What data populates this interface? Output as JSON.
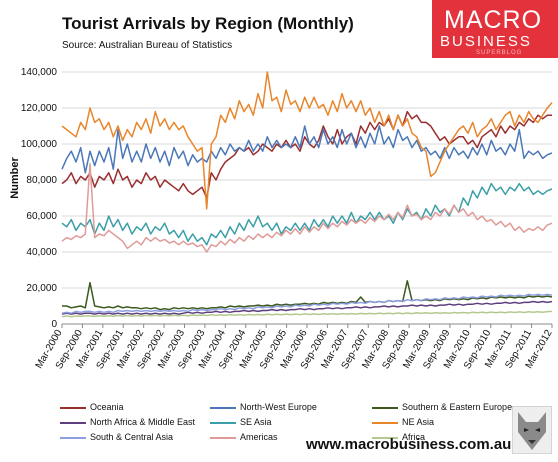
{
  "header": {
    "title": "Tourist Arrivals by Region (Monthly)",
    "source": "Source: Australian Bureau of Statistics"
  },
  "logo": {
    "line1": "MACRO",
    "line2": "BUSINESS",
    "line3": "SUPERBLOG"
  },
  "footer": {
    "url": "www.macrobusiness.com.au"
  },
  "colors": {
    "Oceania": "#9a2f30",
    "North-West Europe": "#4b78b8",
    "Southern & Eastern Europe": "#3b5a1e",
    "North Africa & Middle East": "#5e3f7d",
    "SE Asia": "#3b9fa8",
    "NE Asia": "#e8862b",
    "South & Central Asia": "#8e9ee2",
    "Americas": "#df9b98",
    "Africa": "#b4c98f"
  },
  "chart_data": {
    "type": "line",
    "ylabel": "Number",
    "ylim": [
      0,
      140000
    ],
    "yticks": [
      "0",
      "20,000",
      "40,000",
      "60,000",
      "80,000",
      "100,000",
      "120,000",
      "140,000"
    ],
    "x_tick_labels": [
      "Mar-2000",
      "Sep-2000",
      "Mar-2001",
      "Sep-2001",
      "Mar-2002",
      "Sep-2002",
      "Mar-2003",
      "Sep-2003",
      "Mar-2004",
      "Sep-2004",
      "Mar-2005",
      "Sep-2005",
      "Mar-2006",
      "Sep-2006",
      "Mar-2007",
      "Sep-2007",
      "Mar-2008",
      "Sep-2008",
      "Mar-2009",
      "Sep-2009",
      "Mar-2010",
      "Sep-2010",
      "Mar-2011",
      "Sep-2011",
      "Mar-2012"
    ],
    "grid": true,
    "legend_position": "bottom",
    "series": [
      {
        "name": "Oceania",
        "values": [
          78000,
          80000,
          84000,
          78000,
          82000,
          80000,
          84000,
          76000,
          82000,
          80000,
          84000,
          78000,
          86000,
          80000,
          82000,
          76000,
          80000,
          78000,
          84000,
          80000,
          82000,
          76000,
          80000,
          78000,
          76000,
          74000,
          78000,
          74000,
          72000,
          74000,
          76000,
          70000,
          84000,
          80000,
          86000,
          90000,
          92000,
          94000,
          98000,
          96000,
          98000,
          94000,
          96000,
          100000,
          98000,
          96000,
          100000,
          98000,
          102000,
          98000,
          100000,
          96000,
          104000,
          100000,
          98000,
          102000,
          110000,
          104000,
          100000,
          108000,
          100000,
          104000,
          106000,
          100000,
          110000,
          106000,
          112000,
          108000,
          112000,
          110000,
          114000,
          108000,
          116000,
          110000,
          118000,
          114000,
          116000,
          112000,
          112000,
          110000,
          106000,
          102000,
          104000,
          100000,
          102000,
          104000,
          104000,
          100000,
          102000,
          98000,
          104000,
          106000,
          108000,
          104000,
          110000,
          106000,
          110000,
          108000,
          112000,
          110000,
          114000,
          112000,
          116000,
          114000,
          116000,
          116000
        ]
      },
      {
        "name": "North-West Europe",
        "values": [
          86000,
          92000,
          96000,
          90000,
          98000,
          84000,
          96000,
          88000,
          96000,
          90000,
          98000,
          86000,
          108000,
          92000,
          100000,
          90000,
          96000,
          90000,
          100000,
          92000,
          98000,
          90000,
          96000,
          88000,
          98000,
          92000,
          96000,
          88000,
          94000,
          90000,
          92000,
          90000,
          96000,
          92000,
          98000,
          94000,
          100000,
          96000,
          98000,
          96000,
          102000,
          96000,
          100000,
          96000,
          104000,
          98000,
          102000,
          98000,
          100000,
          98000,
          104000,
          98000,
          110000,
          100000,
          104000,
          98000,
          108000,
          100000,
          104000,
          98000,
          108000,
          100000,
          106000,
          98000,
          104000,
          98000,
          106000,
          100000,
          110000,
          100000,
          104000,
          98000,
          108000,
          102000,
          104000,
          98000,
          102000,
          96000,
          98000,
          94000,
          96000,
          92000,
          98000,
          92000,
          98000,
          94000,
          96000,
          92000,
          98000,
          94000,
          100000,
          94000,
          102000,
          96000,
          98000,
          94000,
          100000,
          96000,
          108000,
          92000,
          96000,
          94000,
          96000,
          92000,
          94000,
          95000
        ]
      },
      {
        "name": "Southern & Eastern Europe",
        "values": [
          10000,
          10000,
          9000,
          9500,
          10000,
          9000,
          23000,
          10000,
          9500,
          9000,
          9500,
          9000,
          10000,
          9000,
          9500,
          9000,
          9000,
          8500,
          9000,
          8500,
          9000,
          8000,
          8500,
          8000,
          9000,
          8500,
          9000,
          8500,
          9000,
          8500,
          9000,
          8500,
          9000,
          9000,
          9500,
          9000,
          10000,
          9500,
          10000,
          9500,
          10000,
          10000,
          10500,
          10000,
          10500,
          10000,
          11000,
          10500,
          11000,
          10500,
          11000,
          11000,
          11500,
          11000,
          11500,
          11000,
          12000,
          11500,
          12000,
          11500,
          12000,
          11500,
          12500,
          12000,
          15000,
          12000,
          12500,
          12000,
          12500,
          12000,
          13000,
          12500,
          13000,
          12500,
          24000,
          13000,
          13500,
          13000,
          13500,
          13000,
          13500,
          13000,
          14000,
          13500,
          14000,
          13500,
          14000,
          13500,
          14500,
          14000,
          14500,
          14000,
          15000,
          14500,
          15000,
          14500,
          15000,
          14500,
          15000,
          14500,
          15500,
          15000,
          15500,
          15000,
          15500,
          15000
        ]
      },
      {
        "name": "North Africa & Middle East",
        "values": [
          5500,
          6000,
          5500,
          6000,
          5500,
          6000,
          6000,
          5500,
          6000,
          5500,
          6000,
          5500,
          6000,
          5500,
          6000,
          5500,
          6000,
          5500,
          6000,
          5500,
          6000,
          5500,
          6000,
          5500,
          6000,
          5500,
          6000,
          6500,
          6000,
          6500,
          6000,
          6500,
          6500,
          7000,
          6500,
          7000,
          6500,
          7000,
          7000,
          7500,
          7000,
          7500,
          7000,
          7500,
          7500,
          8000,
          7500,
          8000,
          7500,
          8000,
          8000,
          8500,
          8000,
          8500,
          8000,
          8500,
          8500,
          9000,
          8500,
          9000,
          8500,
          9000,
          9000,
          9500,
          9000,
          9500,
          9000,
          9500,
          9500,
          10000,
          9500,
          10000,
          9500,
          10000,
          10000,
          10500,
          10000,
          10500,
          10000,
          10500,
          10000,
          10500,
          10500,
          11000,
          10500,
          11000,
          10500,
          11000,
          11000,
          11500,
          11000,
          11500,
          11000,
          11500,
          11500,
          12000,
          11500,
          12000,
          11500,
          12000,
          12000,
          12500,
          12000,
          12500,
          12000,
          12500
        ]
      },
      {
        "name": "SE Asia",
        "values": [
          56000,
          54000,
          58000,
          52000,
          56000,
          54000,
          58000,
          50000,
          56000,
          52000,
          60000,
          54000,
          58000,
          52000,
          56000,
          50000,
          54000,
          52000,
          56000,
          50000,
          54000,
          52000,
          56000,
          50000,
          52000,
          48000,
          52000,
          46000,
          50000,
          46000,
          48000,
          44000,
          50000,
          48000,
          52000,
          48000,
          54000,
          50000,
          56000,
          52000,
          58000,
          54000,
          60000,
          54000,
          56000,
          52000,
          56000,
          50000,
          54000,
          52000,
          56000,
          52000,
          56000,
          52000,
          58000,
          54000,
          58000,
          54000,
          60000,
          56000,
          60000,
          56000,
          62000,
          56000,
          60000,
          58000,
          62000,
          58000,
          62000,
          58000,
          60000,
          56000,
          62000,
          58000,
          64000,
          60000,
          62000,
          58000,
          64000,
          60000,
          66000,
          62000,
          64000,
          60000,
          66000,
          62000,
          70000,
          66000,
          74000,
          70000,
          76000,
          72000,
          78000,
          74000,
          76000,
          72000,
          76000,
          74000,
          78000,
          74000,
          76000,
          72000,
          74000,
          72000,
          74000,
          75000
        ]
      },
      {
        "name": "NE Asia",
        "values": [
          110000,
          108000,
          106000,
          104000,
          112000,
          108000,
          120000,
          112000,
          114000,
          108000,
          112000,
          104000,
          110000,
          102000,
          108000,
          104000,
          112000,
          108000,
          114000,
          106000,
          118000,
          110000,
          114000,
          108000,
          112000,
          108000,
          110000,
          104000,
          100000,
          96000,
          98000,
          64000,
          100000,
          104000,
          116000,
          112000,
          120000,
          114000,
          124000,
          118000,
          122000,
          116000,
          128000,
          120000,
          140000,
          124000,
          126000,
          118000,
          130000,
          122000,
          124000,
          118000,
          126000,
          120000,
          126000,
          120000,
          122000,
          116000,
          124000,
          118000,
          128000,
          120000,
          124000,
          118000,
          124000,
          116000,
          120000,
          112000,
          118000,
          110000,
          116000,
          108000,
          116000,
          110000,
          114000,
          106000,
          104000,
          98000,
          96000,
          82000,
          84000,
          90000,
          96000,
          100000,
          104000,
          108000,
          110000,
          106000,
          112000,
          104000,
          108000,
          110000,
          114000,
          108000,
          112000,
          116000,
          118000,
          110000,
          116000,
          112000,
          118000,
          114000,
          112000,
          116000,
          120000,
          123000
        ]
      },
      {
        "name": "South & Central Asia",
        "values": [
          6000,
          6500,
          6000,
          7000,
          6500,
          7000,
          7000,
          6500,
          7000,
          6500,
          7000,
          6500,
          7500,
          7000,
          7500,
          7000,
          7500,
          7000,
          7500,
          7000,
          7500,
          7000,
          7500,
          7000,
          7500,
          7000,
          7500,
          7000,
          8000,
          7500,
          8000,
          7500,
          8000,
          8000,
          8500,
          8000,
          8500,
          8000,
          9000,
          8500,
          9000,
          8500,
          9500,
          9000,
          9500,
          9000,
          10000,
          9500,
          10000,
          9500,
          10500,
          10000,
          10500,
          10000,
          11000,
          10500,
          11000,
          10500,
          11500,
          11000,
          11500,
          11000,
          12000,
          11500,
          12000,
          11500,
          12500,
          12000,
          12500,
          12000,
          13000,
          12500,
          13000,
          12500,
          13500,
          13000,
          13500,
          13000,
          14000,
          13500,
          14000,
          13500,
          14500,
          14000,
          14500,
          14000,
          15000,
          14500,
          15000,
          14500,
          15500,
          15000,
          15500,
          15000,
          16000,
          15500,
          16000,
          15500,
          16000,
          15500,
          16500,
          16000,
          16500,
          16000,
          16500,
          16000
        ]
      },
      {
        "name": "Americas",
        "values": [
          46000,
          48000,
          47000,
          49000,
          48000,
          50000,
          89000,
          48000,
          50000,
          49000,
          52000,
          50000,
          48000,
          46000,
          42000,
          44000,
          46000,
          44000,
          48000,
          46000,
          48000,
          46000,
          47000,
          45000,
          46000,
          44000,
          46000,
          44000,
          45000,
          43000,
          44000,
          40000,
          44000,
          43000,
          46000,
          44000,
          47000,
          45000,
          48000,
          46000,
          49000,
          47000,
          50000,
          48000,
          50000,
          48000,
          51000,
          49000,
          52000,
          50000,
          53000,
          50000,
          54000,
          51000,
          54000,
          52000,
          56000,
          53000,
          56000,
          54000,
          57000,
          55000,
          58000,
          56000,
          58000,
          56000,
          59000,
          57000,
          60000,
          58000,
          61000,
          58000,
          62000,
          59000,
          66000,
          60000,
          61000,
          58000,
          60000,
          58000,
          62000,
          60000,
          64000,
          61000,
          66000,
          62000,
          64000,
          60000,
          62000,
          58000,
          60000,
          57000,
          58000,
          55000,
          57000,
          54000,
          56000,
          52000,
          54000,
          51000,
          53000,
          52000,
          54000,
          52000,
          55000,
          56000
        ]
      },
      {
        "name": "Africa",
        "values": [
          4000,
          4500,
          4000,
          4500,
          4200,
          4500,
          4500,
          4200,
          4600,
          4300,
          4600,
          4300,
          4700,
          4400,
          4700,
          4400,
          4700,
          4400,
          4800,
          4500,
          4800,
          4500,
          4800,
          4500,
          4900,
          4600,
          4900,
          4600,
          5000,
          4700,
          5000,
          4700,
          5100,
          4800,
          5100,
          4800,
          5200,
          4900,
          5200,
          4900,
          5300,
          5000,
          5300,
          5000,
          5400,
          5100,
          5400,
          5100,
          5500,
          5200,
          5500,
          5200,
          5600,
          5300,
          5600,
          5300,
          5700,
          5400,
          5700,
          5400,
          5800,
          5500,
          5800,
          5500,
          5900,
          5600,
          5900,
          5600,
          6000,
          5700,
          6000,
          5700,
          6100,
          5800,
          6100,
          5800,
          6200,
          5900,
          6200,
          5900,
          6300,
          6000,
          6300,
          6000,
          6400,
          6100,
          6400,
          6100,
          6500,
          6200,
          6500,
          6200,
          6600,
          6300,
          6600,
          6300,
          6700,
          6400,
          6700,
          6400,
          6800,
          6500,
          6800,
          6500,
          6900,
          7000
        ]
      }
    ]
  }
}
